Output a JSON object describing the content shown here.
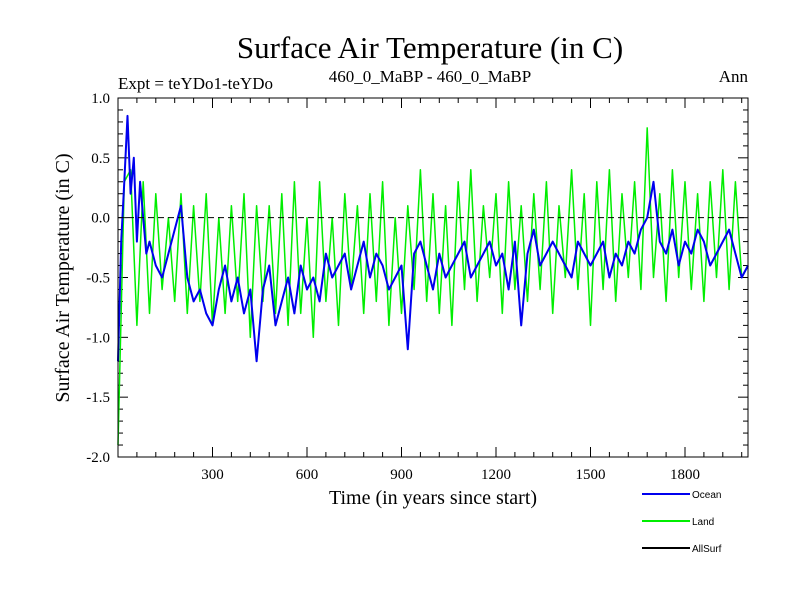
{
  "chart_data": {
    "type": "line",
    "title": "Surface Air Temperature (in C)",
    "subtitle_left": "Expt = teYDo1-teYDo",
    "subtitle_center": "460_0_MaBP - 460_0_MaBP",
    "subtitle_right": "Ann",
    "xlabel": "Time (in years since start)",
    "ylabel": "Surface Air Temperature (in C)",
    "xlim": [
      0,
      2000
    ],
    "ylim": [
      -2.0,
      1.0
    ],
    "xticks": [
      300,
      600,
      900,
      1200,
      1500,
      1800
    ],
    "xtick_labels": [
      "300",
      "600",
      "900",
      "1200",
      "1500",
      "1800"
    ],
    "yticks": [
      -2.0,
      -1.5,
      -1.0,
      -0.5,
      0.0,
      0.5,
      1.0
    ],
    "ytick_labels": [
      "-2.0",
      "-1.5",
      "-1.0",
      "-0.5",
      "0.0",
      "0.5",
      "1.0"
    ],
    "zero_line": 0.0,
    "legend_position": "bottom-right",
    "series": [
      {
        "name": "Land",
        "color": "#00ee00",
        "x": [
          0,
          20,
          40,
          60,
          80,
          100,
          120,
          140,
          160,
          180,
          200,
          220,
          240,
          260,
          280,
          300,
          320,
          340,
          360,
          380,
          400,
          420,
          440,
          460,
          480,
          500,
          520,
          540,
          560,
          580,
          600,
          620,
          640,
          660,
          680,
          700,
          720,
          740,
          760,
          780,
          800,
          820,
          840,
          860,
          880,
          900,
          920,
          940,
          960,
          980,
          1000,
          1020,
          1040,
          1060,
          1080,
          1100,
          1120,
          1140,
          1160,
          1180,
          1200,
          1220,
          1240,
          1260,
          1280,
          1300,
          1320,
          1340,
          1360,
          1380,
          1400,
          1420,
          1440,
          1460,
          1480,
          1500,
          1520,
          1540,
          1560,
          1580,
          1600,
          1620,
          1640,
          1660,
          1680,
          1700,
          1720,
          1740,
          1760,
          1780,
          1800,
          1820,
          1840,
          1860,
          1880,
          1900,
          1920,
          1940,
          1960,
          1980,
          2000
        ],
        "values": [
          -1.9,
          0.3,
          0.4,
          -0.9,
          0.3,
          -0.8,
          0.2,
          -0.6,
          0.0,
          -0.7,
          0.2,
          -0.8,
          0.1,
          -0.7,
          0.2,
          -0.9,
          0.0,
          -0.8,
          0.1,
          -0.7,
          0.2,
          -1.0,
          0.1,
          -0.7,
          0.1,
          -0.8,
          0.2,
          -0.9,
          0.3,
          -0.8,
          0.0,
          -1.0,
          0.3,
          -0.7,
          0.0,
          -0.9,
          0.2,
          -0.6,
          0.1,
          -0.8,
          0.2,
          -0.7,
          0.3,
          -0.9,
          0.0,
          -0.8,
          0.1,
          -0.6,
          0.4,
          -0.7,
          0.2,
          -0.8,
          0.1,
          -0.9,
          0.3,
          -0.6,
          0.4,
          -0.7,
          0.1,
          -0.5,
          0.2,
          -0.8,
          0.3,
          -0.6,
          0.1,
          -0.7,
          0.2,
          -0.6,
          0.3,
          -0.8,
          0.1,
          -0.5,
          0.4,
          -0.6,
          0.2,
          -0.9,
          0.3,
          -0.6,
          0.4,
          -0.7,
          0.2,
          -0.5,
          0.3,
          -0.6,
          0.75,
          -0.5,
          0.2,
          -0.7,
          0.4,
          -0.5,
          0.3,
          -0.6,
          0.2,
          -0.7,
          0.3,
          -0.5,
          0.4,
          -0.6,
          0.3,
          -0.5,
          -0.4
        ]
      },
      {
        "name": "Ocean",
        "color": "#0000ee",
        "x": [
          0,
          10,
          20,
          30,
          40,
          50,
          60,
          70,
          80,
          90,
          100,
          120,
          140,
          160,
          180,
          200,
          220,
          240,
          260,
          280,
          300,
          320,
          340,
          360,
          380,
          400,
          420,
          440,
          460,
          480,
          500,
          520,
          540,
          560,
          580,
          600,
          620,
          640,
          660,
          680,
          700,
          720,
          740,
          760,
          780,
          800,
          820,
          840,
          860,
          880,
          900,
          920,
          940,
          960,
          980,
          1000,
          1020,
          1040,
          1060,
          1080,
          1100,
          1120,
          1140,
          1160,
          1180,
          1200,
          1220,
          1240,
          1260,
          1280,
          1300,
          1320,
          1340,
          1360,
          1380,
          1400,
          1420,
          1440,
          1460,
          1480,
          1500,
          1520,
          1540,
          1560,
          1580,
          1600,
          1620,
          1640,
          1660,
          1680,
          1700,
          1720,
          1740,
          1760,
          1780,
          1800,
          1820,
          1840,
          1860,
          1880,
          1900,
          1920,
          1940,
          1960,
          1980,
          2000
        ],
        "values": [
          -1.2,
          -0.2,
          0.3,
          0.85,
          0.2,
          0.5,
          -0.2,
          0.3,
          0.0,
          -0.3,
          -0.2,
          -0.4,
          -0.5,
          -0.3,
          -0.1,
          0.1,
          -0.5,
          -0.7,
          -0.6,
          -0.8,
          -0.9,
          -0.6,
          -0.4,
          -0.7,
          -0.5,
          -0.8,
          -0.6,
          -1.2,
          -0.6,
          -0.4,
          -0.9,
          -0.7,
          -0.5,
          -0.8,
          -0.4,
          -0.6,
          -0.5,
          -0.7,
          -0.3,
          -0.5,
          -0.4,
          -0.3,
          -0.6,
          -0.4,
          -0.2,
          -0.5,
          -0.3,
          -0.4,
          -0.6,
          -0.5,
          -0.4,
          -1.1,
          -0.3,
          -0.2,
          -0.4,
          -0.6,
          -0.3,
          -0.5,
          -0.4,
          -0.3,
          -0.2,
          -0.5,
          -0.4,
          -0.3,
          -0.2,
          -0.4,
          -0.3,
          -0.6,
          -0.2,
          -0.9,
          -0.3,
          -0.1,
          -0.4,
          -0.3,
          -0.2,
          -0.3,
          -0.4,
          -0.5,
          -0.2,
          -0.3,
          -0.4,
          -0.3,
          -0.2,
          -0.5,
          -0.3,
          -0.4,
          -0.2,
          -0.3,
          -0.1,
          0.0,
          0.3,
          -0.2,
          -0.3,
          -0.1,
          -0.4,
          -0.2,
          -0.3,
          -0.1,
          -0.2,
          -0.4,
          -0.3,
          -0.2,
          -0.1,
          -0.3,
          -0.5,
          -0.4
        ]
      },
      {
        "name": "AllSurf",
        "color": "#000000",
        "x": [],
        "values": []
      }
    ]
  }
}
